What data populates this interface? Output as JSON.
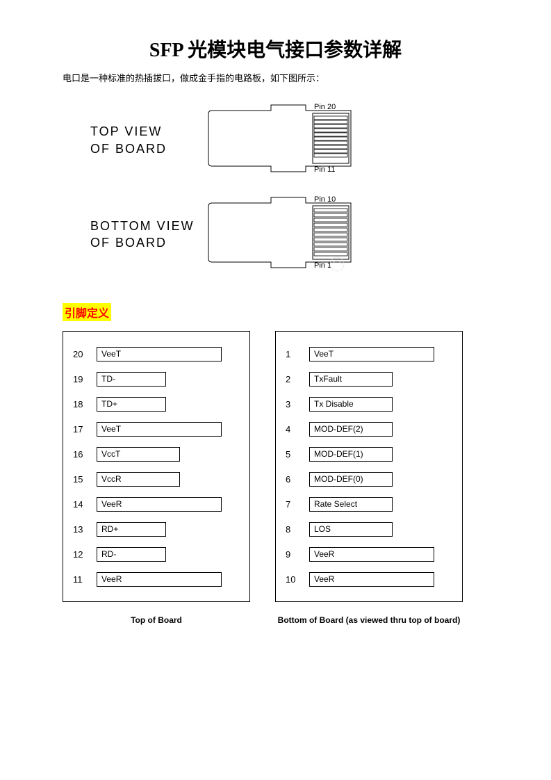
{
  "title": "SFP 光模块电气接口参数详解",
  "intro": "电口是一种标准的热插拔口，做成金手指的电路板，如下图所示：",
  "diagrams": {
    "top": {
      "label": "TOP VIEW\nOF BOARD",
      "pin_top_label": "Pin 20",
      "pin_bottom_label": "Pin 11"
    },
    "bottom": {
      "label": "BOTTOM VIEW\nOF BOARD",
      "pin_top_label": "Pin 10",
      "pin_bottom_label": "Pin 1"
    },
    "colors": {
      "stroke": "#000000",
      "fill": "#ffffff",
      "label_fontsize": 11
    }
  },
  "section_heading": "引脚定义",
  "pin_tables": {
    "top_board": {
      "caption": "Top of Board",
      "pins": [
        {
          "num": "20",
          "name": "VeeT",
          "w": "wide"
        },
        {
          "num": "19",
          "name": "TD-",
          "w": "narrow"
        },
        {
          "num": "18",
          "name": "TD+",
          "w": "narrow"
        },
        {
          "num": "17",
          "name": "VeeT",
          "w": "wide"
        },
        {
          "num": "16",
          "name": "VccT",
          "w": "med"
        },
        {
          "num": "15",
          "name": "VccR",
          "w": "med"
        },
        {
          "num": "14",
          "name": "VeeR",
          "w": "wide"
        },
        {
          "num": "13",
          "name": "RD+",
          "w": "narrow"
        },
        {
          "num": "12",
          "name": "RD-",
          "w": "narrow"
        },
        {
          "num": "11",
          "name": "VeeR",
          "w": "wide"
        }
      ]
    },
    "bottom_board": {
      "caption": "Bottom of Board (as viewed thru top of board)",
      "pins": [
        {
          "num": "1",
          "name": "VeeT",
          "w": "wide"
        },
        {
          "num": "2",
          "name": "TxFault",
          "w": "med"
        },
        {
          "num": "3",
          "name": "Tx Disable",
          "w": "med"
        },
        {
          "num": "4",
          "name": "MOD-DEF(2)",
          "w": "med"
        },
        {
          "num": "5",
          "name": "MOD-DEF(1)",
          "w": "med"
        },
        {
          "num": "6",
          "name": "MOD-DEF(0)",
          "w": "med"
        },
        {
          "num": "7",
          "name": "Rate Select",
          "w": "med"
        },
        {
          "num": "8",
          "name": "LOS",
          "w": "med"
        },
        {
          "num": "9",
          "name": "VeeR",
          "w": "wide"
        },
        {
          "num": "10",
          "name": "VeeR",
          "w": "wide"
        }
      ]
    }
  },
  "colors": {
    "highlight_bg": "#ffff00",
    "highlight_fg": "#ff0000",
    "text": "#000000",
    "border": "#000000",
    "page_bg": "#ffffff"
  }
}
